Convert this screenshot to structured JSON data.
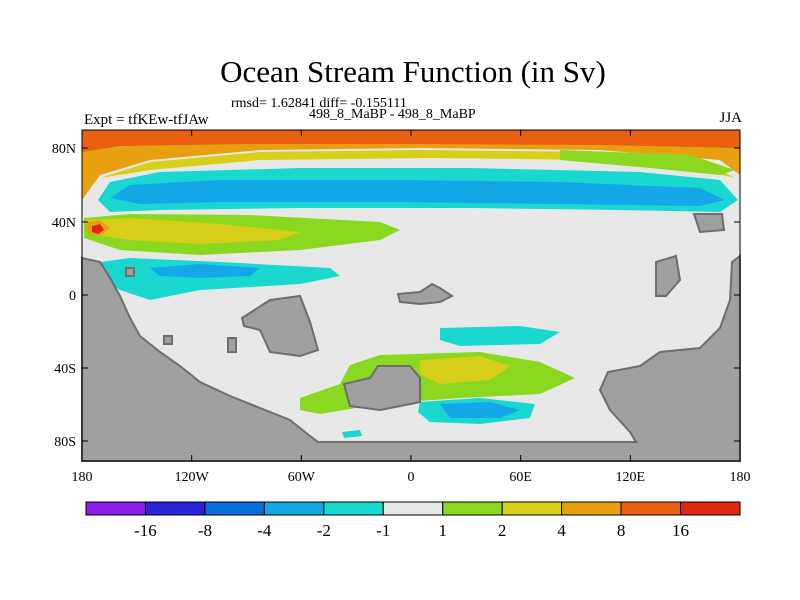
{
  "header": {
    "title": "Ocean Stream Function (in Sv)",
    "stats": "rmsd= 1.62841 diff= -0.155111",
    "expt": "Expt = tfKEw-tfJAw",
    "case": "498_8_MaBP - 498_8_MaBP",
    "season": "JJA"
  },
  "map": {
    "lon_ticks": [
      "180",
      "120W",
      "60W",
      "0",
      "60E",
      "120E",
      "180"
    ],
    "lat_ticks": [
      "80N",
      "40N",
      "0",
      "40S",
      "80S"
    ],
    "colors": {
      "land": "#a0a0a0",
      "coast": "#6e6e6e",
      "neutral": "#e8e8e8"
    }
  },
  "colorbar": {
    "labels": [
      "-16",
      "-8",
      "-4",
      "-2",
      "-1",
      "1",
      "2",
      "4",
      "8",
      "16"
    ],
    "colors": [
      "#8b1fe8",
      "#2a22d8",
      "#0a6ed8",
      "#14a7e8",
      "#18d8d0",
      "#e8e8e8",
      "#8ad820",
      "#d8d018",
      "#e8a010",
      "#e86010",
      "#e02810"
    ]
  }
}
